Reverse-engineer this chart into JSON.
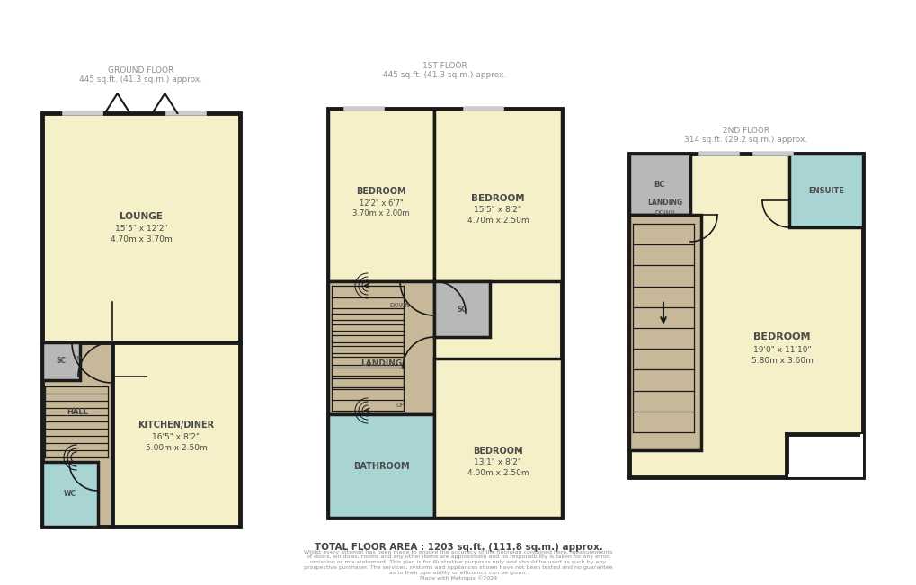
{
  "bg_color": "#ffffff",
  "wall_color": "#1a1a1a",
  "room_yellow": "#f5f0c8",
  "room_tan": "#c8b89a",
  "room_blue": "#a8d4d4",
  "room_gray": "#b8b8b8",
  "title_color": "#909090",
  "text_color": "#4a4a4a",
  "footer_color": "#909090",
  "ground_floor_label": "GROUND FLOOR\n445 sq.ft. (41.3 sq.m.) approx.",
  "first_floor_label": "1ST FLOOR\n445 sq.ft. (41.3 sq.m.) approx.",
  "second_floor_label": "2ND FLOOR\n314 sq.ft. (29.2 sq.m.) approx.",
  "total_area": "TOTAL FLOOR AREA : 1203 sq.ft. (111.8 sq.m.) approx.",
  "disclaimer": "Whilst every attempt has been made to ensure the accuracy of the floorplan contained here, measurements\nof doors, windows, rooms and any other items are approximate and no responsibility is taken for any error,\nomission or mis-statement. This plan is for illustrative purposes only and should be used as such by any\nprospective purchaser. The services, systems and appliances shown have not been tested and no guarantee\nas to their operability or efficiency can be given.\nMade with Metropix ©2024"
}
